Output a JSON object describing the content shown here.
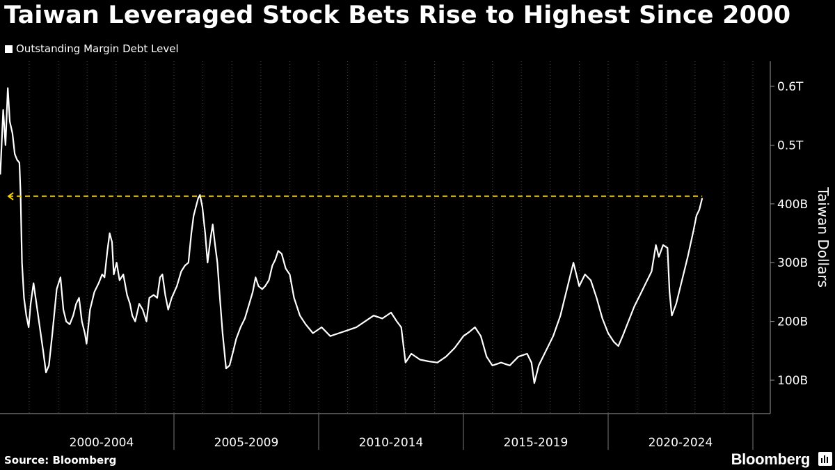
{
  "chart_data": {
    "type": "line",
    "title": "Taiwan Leveraged Stock Bets Rise to Highest Since 2000",
    "ylabel": "Taiwan Dollars",
    "x_unit": "year",
    "xlim": [
      2000,
      2025.8
    ],
    "ylim": [
      40,
      660
    ],
    "y_unit": "NT$ billions",
    "y_ticks": [
      100,
      200,
      300,
      400,
      500,
      600
    ],
    "y_tick_labels": [
      "100B",
      "200B",
      "300B",
      "400B",
      "0.5T",
      "0.6T"
    ],
    "x_groups": [
      {
        "label": "2000-2004",
        "start": 2000,
        "end": 2005
      },
      {
        "label": "2005-2009",
        "start": 2005,
        "end": 2010
      },
      {
        "label": "2010-2014",
        "start": 2010,
        "end": 2015
      },
      {
        "label": "2015-2019",
        "start": 2015,
        "end": 2020
      },
      {
        "label": "2020-2024",
        "start": 2020,
        "end": 2025
      }
    ],
    "grid": "vertical dotted",
    "legend": "top-left",
    "series": [
      {
        "name": "Outstanding Margin Debt Level",
        "color": "#ffffff",
        "points": [
          [
            1999.0,
            450
          ],
          [
            1999.1,
            560
          ],
          [
            1999.18,
            500
          ],
          [
            1999.26,
            597
          ],
          [
            1999.33,
            540
          ],
          [
            1999.42,
            520
          ],
          [
            1999.5,
            485
          ],
          [
            1999.58,
            475
          ],
          [
            1999.66,
            470
          ],
          [
            1999.7,
            420
          ],
          [
            1999.75,
            300
          ],
          [
            1999.82,
            240
          ],
          [
            1999.9,
            210
          ],
          [
            1999.98,
            190
          ],
          [
            2000.05,
            230
          ],
          [
            2000.15,
            265
          ],
          [
            2000.25,
            230
          ],
          [
            2000.35,
            195
          ],
          [
            2000.48,
            150
          ],
          [
            2000.58,
            113
          ],
          [
            2000.68,
            125
          ],
          [
            2000.8,
            180
          ],
          [
            2000.95,
            255
          ],
          [
            2001.08,
            275
          ],
          [
            2001.18,
            220
          ],
          [
            2001.28,
            200
          ],
          [
            2001.4,
            195
          ],
          [
            2001.52,
            210
          ],
          [
            2001.62,
            230
          ],
          [
            2001.72,
            240
          ],
          [
            2001.82,
            200
          ],
          [
            2001.92,
            180
          ],
          [
            2001.98,
            162
          ],
          [
            2002.1,
            220
          ],
          [
            2002.25,
            250
          ],
          [
            2002.4,
            265
          ],
          [
            2002.52,
            280
          ],
          [
            2002.6,
            275
          ],
          [
            2002.7,
            320
          ],
          [
            2002.78,
            350
          ],
          [
            2002.86,
            335
          ],
          [
            2002.92,
            280
          ],
          [
            2003.02,
            300
          ],
          [
            2003.12,
            270
          ],
          [
            2003.25,
            280
          ],
          [
            2003.38,
            245
          ],
          [
            2003.48,
            230
          ],
          [
            2003.56,
            210
          ],
          [
            2003.66,
            200
          ],
          [
            2003.8,
            230
          ],
          [
            2003.92,
            220
          ],
          [
            2004.05,
            200
          ],
          [
            2004.15,
            240
          ],
          [
            2004.3,
            245
          ],
          [
            2004.42,
            240
          ],
          [
            2004.52,
            275
          ],
          [
            2004.6,
            280
          ],
          [
            2004.7,
            245
          ],
          [
            2004.8,
            220
          ],
          [
            2004.92,
            240
          ],
          [
            2005.1,
            260
          ],
          [
            2005.25,
            285
          ],
          [
            2005.38,
            295
          ],
          [
            2005.5,
            300
          ],
          [
            2005.6,
            350
          ],
          [
            2005.68,
            380
          ],
          [
            2005.76,
            395
          ],
          [
            2005.84,
            410
          ],
          [
            2005.9,
            415
          ],
          [
            2005.98,
            395
          ],
          [
            2006.08,
            350
          ],
          [
            2006.16,
            300
          ],
          [
            2006.26,
            340
          ],
          [
            2006.34,
            365
          ],
          [
            2006.42,
            330
          ],
          [
            2006.5,
            300
          ],
          [
            2006.58,
            245
          ],
          [
            2006.68,
            180
          ],
          [
            2006.8,
            120
          ],
          [
            2006.92,
            125
          ],
          [
            2007.05,
            150
          ],
          [
            2007.15,
            170
          ],
          [
            2007.3,
            190
          ],
          [
            2007.45,
            205
          ],
          [
            2007.6,
            230
          ],
          [
            2007.72,
            250
          ],
          [
            2007.82,
            275
          ],
          [
            2007.92,
            260
          ],
          [
            2008.05,
            255
          ],
          [
            2008.15,
            260
          ],
          [
            2008.28,
            270
          ],
          [
            2008.4,
            295
          ],
          [
            2008.5,
            305
          ],
          [
            2008.6,
            320
          ],
          [
            2008.72,
            315
          ],
          [
            2008.86,
            290
          ],
          [
            2009.0,
            280
          ],
          [
            2009.15,
            240
          ],
          [
            2009.35,
            210
          ],
          [
            2009.55,
            195
          ],
          [
            2009.8,
            180
          ],
          [
            2010.1,
            190
          ],
          [
            2010.4,
            175
          ],
          [
            2010.7,
            180
          ],
          [
            2011.0,
            185
          ],
          [
            2011.3,
            190
          ],
          [
            2011.6,
            200
          ],
          [
            2011.9,
            210
          ],
          [
            2012.2,
            205
          ],
          [
            2012.5,
            215
          ],
          [
            2012.7,
            200
          ],
          [
            2012.85,
            190
          ],
          [
            2013.0,
            130
          ],
          [
            2013.2,
            145
          ],
          [
            2013.5,
            135
          ],
          [
            2013.8,
            132
          ],
          [
            2014.1,
            130
          ],
          [
            2014.4,
            140
          ],
          [
            2014.7,
            155
          ],
          [
            2015.0,
            175
          ],
          [
            2015.2,
            182
          ],
          [
            2015.4,
            190
          ],
          [
            2015.6,
            175
          ],
          [
            2015.8,
            140
          ],
          [
            2016.0,
            125
          ],
          [
            2016.3,
            130
          ],
          [
            2016.6,
            125
          ],
          [
            2016.9,
            140
          ],
          [
            2017.2,
            145
          ],
          [
            2017.35,
            130
          ],
          [
            2017.45,
            95
          ],
          [
            2017.6,
            125
          ],
          [
            2017.85,
            150
          ],
          [
            2018.1,
            175
          ],
          [
            2018.35,
            210
          ],
          [
            2018.6,
            260
          ],
          [
            2018.8,
            300
          ],
          [
            2019.0,
            260
          ],
          [
            2019.2,
            280
          ],
          [
            2019.4,
            270
          ],
          [
            2019.6,
            240
          ],
          [
            2019.8,
            205
          ],
          [
            2020.0,
            180
          ],
          [
            2020.2,
            165
          ],
          [
            2020.35,
            158
          ],
          [
            2020.5,
            175
          ],
          [
            2020.7,
            200
          ],
          [
            2020.9,
            225
          ],
          [
            2021.1,
            245
          ],
          [
            2021.3,
            265
          ],
          [
            2021.5,
            285
          ],
          [
            2021.65,
            330
          ],
          [
            2021.75,
            310
          ],
          [
            2021.9,
            330
          ],
          [
            2022.05,
            325
          ],
          [
            2022.12,
            250
          ],
          [
            2022.2,
            210
          ],
          [
            2022.35,
            230
          ],
          [
            2022.55,
            270
          ],
          [
            2022.75,
            310
          ],
          [
            2022.95,
            355
          ],
          [
            2023.05,
            380
          ],
          [
            2023.15,
            390
          ],
          [
            2023.25,
            410
          ]
        ]
      },
      {
        "name": "",
        "color": "#f5d000",
        "style": "dashed",
        "points": [
          [
            1999.28,
            413
          ],
          [
            2023.25,
            413
          ]
        ]
      }
    ],
    "annotations": [
      {
        "type": "arrow-left",
        "x": 1999.28,
        "y": 413,
        "color": "#f5d000"
      }
    ]
  },
  "footer": {
    "source": "Source: Bloomberg",
    "brand": "Bloomberg"
  }
}
